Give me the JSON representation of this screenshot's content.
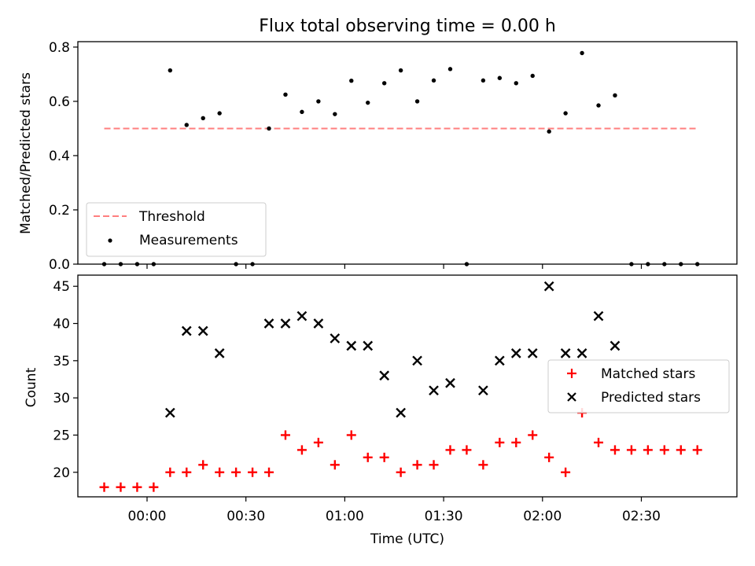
{
  "chart_data": [
    {
      "type": "scatter",
      "title": "Flux total observing time = 0.00 h",
      "ylabel": "Matched/Predicted stars",
      "xlabel": "",
      "xlim_minutes": [
        -21,
        179
      ],
      "ylim": [
        0,
        0.82
      ],
      "yticks": [
        0.0,
        0.2,
        0.4,
        0.6,
        0.8
      ],
      "ytick_labels": [
        "0.0",
        "0.2",
        "0.4",
        "0.6",
        "0.8"
      ],
      "legend_position": "lower-left",
      "legend": [
        "Threshold",
        "Measurements"
      ],
      "threshold": {
        "name": "Threshold",
        "y": 0.5,
        "x_range": [
          -13,
          167
        ],
        "color": "#ff7f7f"
      },
      "series": [
        {
          "name": "Measurements",
          "color": "#000000",
          "x": [
            "23:47",
            "23:52",
            "23:57",
            "00:02",
            "00:07",
            "00:12",
            "00:17",
            "00:22",
            "00:27",
            "00:32",
            "00:37",
            "00:42",
            "00:47",
            "00:52",
            "00:57",
            "01:02",
            "01:07",
            "01:12",
            "01:17",
            "01:22",
            "01:27",
            "01:32",
            "01:37",
            "01:42",
            "01:47",
            "01:52",
            "01:57",
            "02:02",
            "02:07",
            "02:12",
            "02:17",
            "02:22",
            "02:27",
            "02:32",
            "02:37",
            "02:42",
            "02:47"
          ],
          "y": [
            0,
            0,
            0,
            0,
            0.714,
            0.513,
            0.538,
            0.556,
            0,
            0,
            0.5,
            0.625,
            0.561,
            0.6,
            0.553,
            0.676,
            0.595,
            0.667,
            0.714,
            0.6,
            0.677,
            0.719,
            0,
            0.677,
            0.686,
            0.667,
            0.694,
            0.489,
            0.556,
            0.778,
            0.585,
            0.622,
            0,
            0,
            0,
            0,
            0
          ]
        }
      ]
    },
    {
      "type": "scatter",
      "xlabel": "Time (UTC)",
      "ylabel": "Count",
      "xlim_minutes": [
        -21,
        179
      ],
      "ylim": [
        16.7,
        46.5
      ],
      "yticks": [
        20,
        25,
        30,
        35,
        40,
        45
      ],
      "ytick_labels": [
        "20",
        "25",
        "30",
        "35",
        "40",
        "45"
      ],
      "xticks": [
        "00:00",
        "00:30",
        "01:00",
        "01:30",
        "02:00",
        "02:30"
      ],
      "xtick_minutes": [
        0,
        30,
        60,
        90,
        120,
        150
      ],
      "legend_position": "center-right",
      "legend": [
        "Matched stars",
        "Predicted stars"
      ],
      "series": [
        {
          "name": "Matched stars",
          "marker": "plus",
          "color": "#ff0000",
          "x": [
            "23:47",
            "23:52",
            "23:57",
            "00:02",
            "00:07",
            "00:12",
            "00:17",
            "00:22",
            "00:27",
            "00:32",
            "00:37",
            "00:42",
            "00:47",
            "00:52",
            "00:57",
            "01:02",
            "01:07",
            "01:12",
            "01:17",
            "01:22",
            "01:27",
            "01:32",
            "01:37",
            "01:42",
            "01:47",
            "01:52",
            "01:57",
            "02:02",
            "02:07",
            "02:12",
            "02:17",
            "02:22",
            "02:27",
            "02:32",
            "02:37",
            "02:42",
            "02:47"
          ],
          "y": [
            18,
            18,
            18,
            18,
            20,
            20,
            21,
            20,
            20,
            20,
            20,
            25,
            23,
            24,
            21,
            25,
            22,
            22,
            20,
            21,
            21,
            23,
            23,
            21,
            24,
            24,
            25,
            22,
            20,
            28,
            24,
            23,
            23,
            23,
            23,
            23,
            23
          ]
        },
        {
          "name": "Predicted stars",
          "marker": "x",
          "color": "#000000",
          "x": [
            "00:07",
            "00:12",
            "00:17",
            "00:22",
            "00:37",
            "00:42",
            "00:47",
            "00:52",
            "00:57",
            "01:02",
            "01:07",
            "01:12",
            "01:17",
            "01:22",
            "01:27",
            "01:32",
            "01:42",
            "01:47",
            "01:52",
            "01:57",
            "02:02",
            "02:07",
            "02:12",
            "02:17",
            "02:22"
          ],
          "y": [
            28,
            39,
            39,
            36,
            40,
            40,
            41,
            40,
            38,
            37,
            37,
            33,
            28,
            35,
            31,
            32,
            31,
            35,
            36,
            36,
            45,
            36,
            36,
            41,
            37
          ]
        }
      ]
    }
  ]
}
